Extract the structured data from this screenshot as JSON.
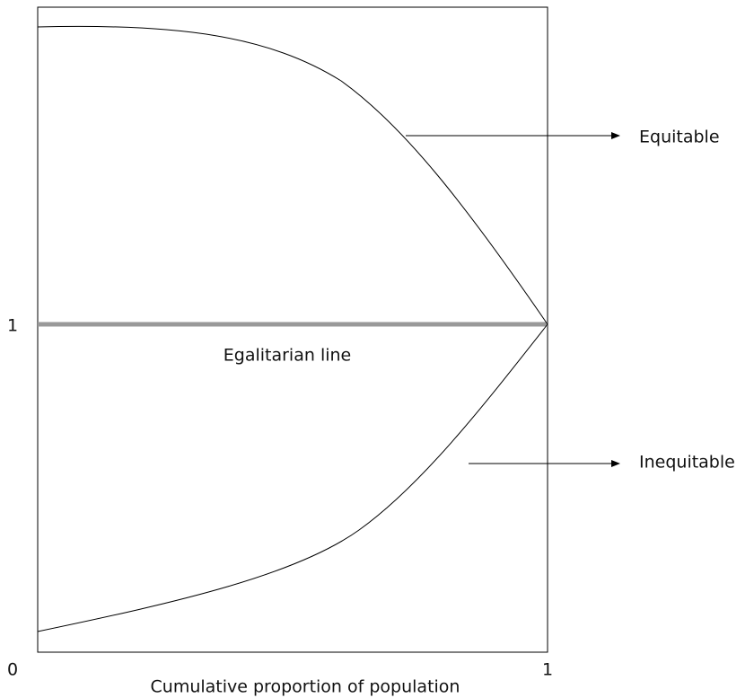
{
  "axes": {
    "y_tick": "1",
    "x_ticks": [
      "0",
      "1"
    ],
    "x_label": "Cumulative proportion of population"
  },
  "curves": {
    "egalitarian": "Egalitarian line",
    "equitable": "Equitable",
    "inequitable": "Inequitable"
  }
}
